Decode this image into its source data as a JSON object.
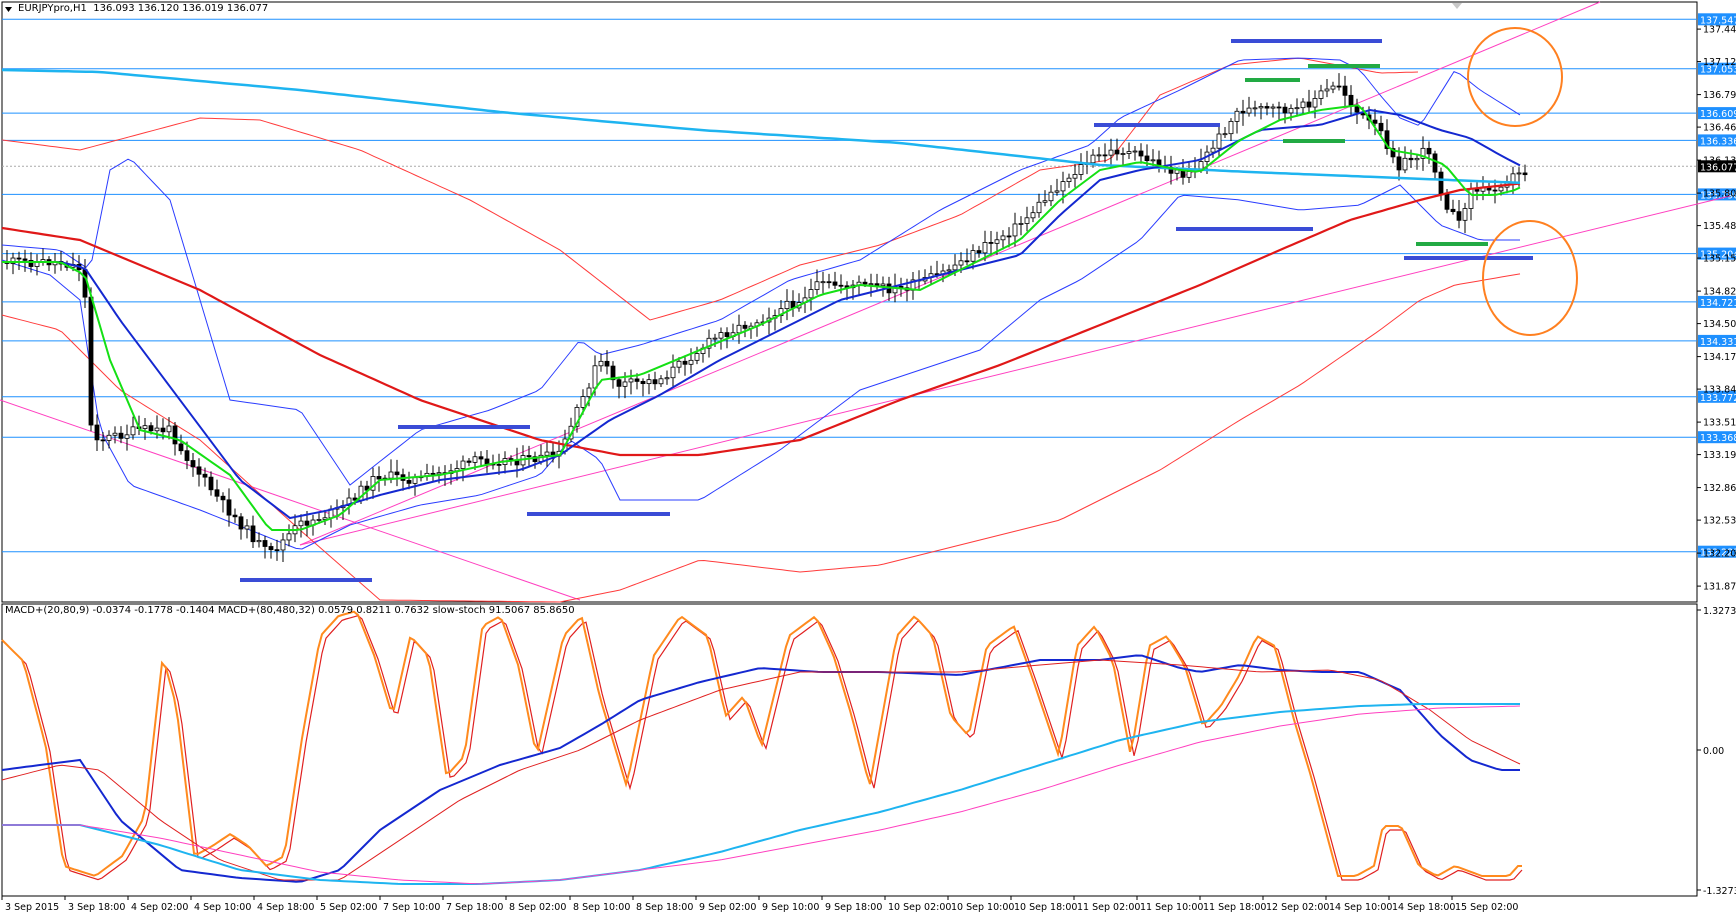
{
  "window": {
    "symbol_header": "EURJPYpro,H1",
    "ohlc": "136.093 136.120 136.019 136.077"
  },
  "price_pane": {
    "current_price": "136.077",
    "axis_ticks": [
      "137.449",
      "137.124",
      "136.794",
      "136.469",
      "136.139",
      "135.809",
      "135.484",
      "135.159",
      "134.829",
      "134.504",
      "134.174",
      "133.849",
      "133.519",
      "133.194",
      "132.864",
      "132.539",
      "132.209",
      "131.879"
    ],
    "level_lines": [
      {
        "label": "137.547",
        "color": "#1e90ff"
      },
      {
        "label": "137.053",
        "color": "#1e90ff"
      },
      {
        "label": "136.609",
        "color": "#1e90ff"
      },
      {
        "label": "136.336",
        "color": "#1e90ff"
      },
      {
        "label": "135.796",
        "color": "#1e90ff"
      },
      {
        "label": "135.204",
        "color": "#1e90ff"
      },
      {
        "label": "134.721",
        "color": "#1e90ff"
      },
      {
        "label": "134.331",
        "color": "#1e90ff"
      },
      {
        "label": "133.772",
        "color": "#1e90ff"
      },
      {
        "label": "133.368",
        "color": "#1e90ff"
      },
      {
        "label": "132.223",
        "color": "#1e90ff"
      }
    ]
  },
  "indicator_pane": {
    "header": "MACD+(20,80,9) -0.0374 -0.1778 -0.1404  MACD+(80,480,32) 0.0579 0.8211 0.7632  slow-stoch 91.5067 85.8650",
    "axis_ticks": [
      "1.3273",
      "0.00",
      "-1.3273"
    ]
  },
  "time_axis": [
    "3 Sep 2015",
    "3 Sep 18:00",
    "4 Sep 02:00",
    "4 Sep 10:00",
    "4 Sep 18:00",
    "5 Sep 02:00",
    "7 Sep 10:00",
    "7 Sep 18:00",
    "8 Sep 02:00",
    "8 Sep 10:00",
    "8 Sep 18:00",
    "9 Sep 02:00",
    "9 Sep 10:00",
    "9 Sep 18:00",
    "10 Sep 02:00",
    "10 Sep 10:00",
    "10 Sep 18:00",
    "11 Sep 02:00",
    "11 Sep 10:00",
    "11 Sep 18:00",
    "12 Sep 02:00",
    "14 Sep 10:00",
    "14 Sep 18:00",
    "15 Sep 02:00"
  ],
  "colors": {
    "level_line": "#1e90ff",
    "ema_long": "#e01818",
    "bollinger_red": "#ff3b3b",
    "bollinger_blue": "#2a3cff",
    "ema_blue": "#1428d0",
    "ema_green": "#14e014",
    "ema_cyan": "#1eb4f0",
    "trendline": "#ff40c0",
    "annotation_circle": "#ff8020",
    "support_bar": "#3a4cd6",
    "resistance_bar": "#22aa44",
    "stoch_main": "#ff8a1e",
    "stoch_signal": "#e02020",
    "macd_fast": "#1428d0",
    "macd_slow": "#1eb4f0",
    "macd_signal_slow": "#ff40c0"
  }
}
